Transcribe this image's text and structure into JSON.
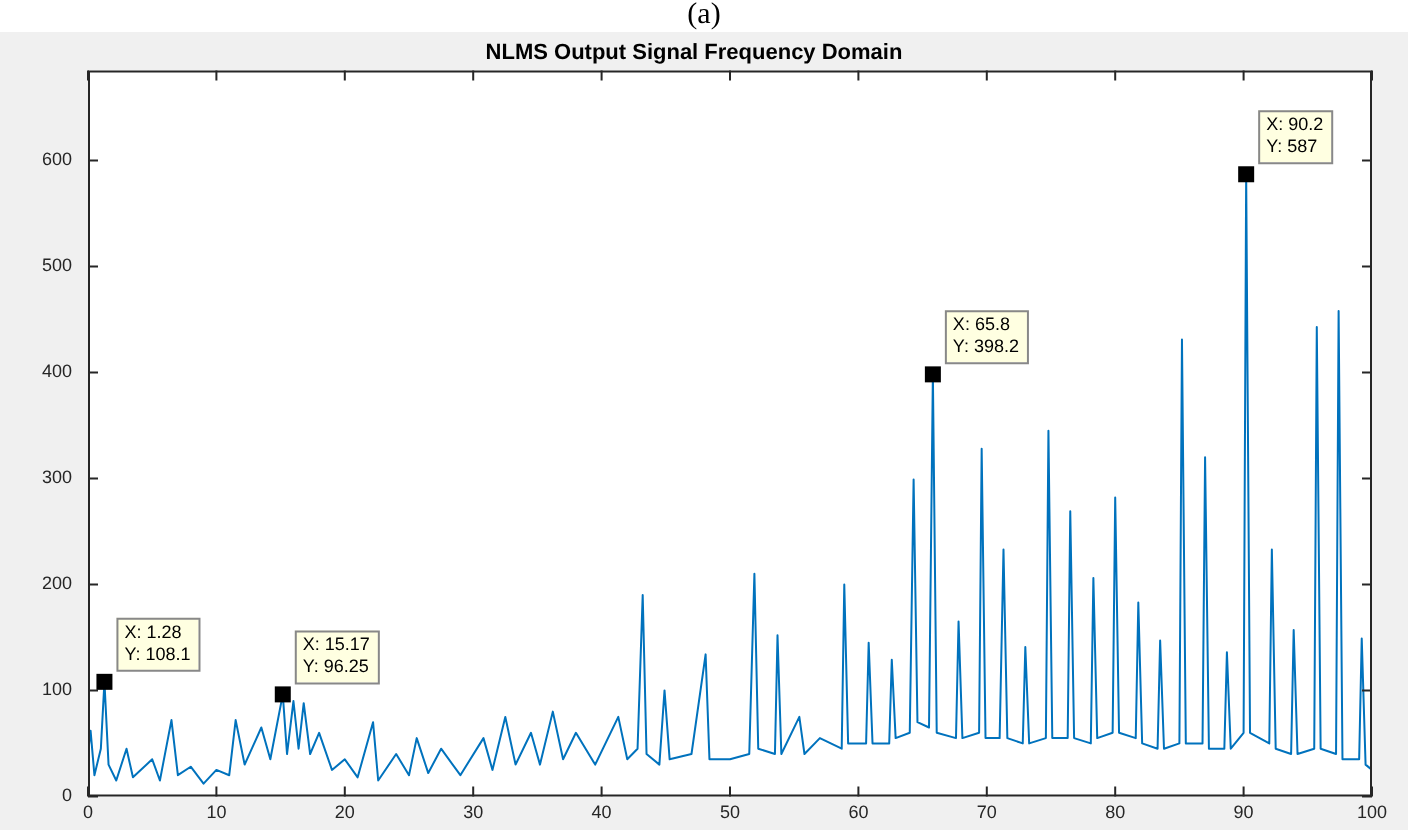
{
  "chart_data": {
    "type": "line",
    "title": "NLMS Output Signal Frequency Domain",
    "annotations": [
      "(a)",
      {
        "text": "X: 1.28\nY: 108.1",
        "x": 1.28,
        "y": 108.1
      },
      {
        "text": "X: 15.17\nY: 96.25",
        "x": 15.17,
        "y": 96.25
      },
      {
        "text": "X: 65.8\nY: 398.2",
        "x": 65.8,
        "y": 398.2
      },
      {
        "text": "X: 90.2\nY: 587",
        "x": 90.2,
        "y": 587
      }
    ],
    "x": [
      0,
      0.2,
      0.5,
      1.0,
      1.28,
      1.6,
      2.2,
      3,
      3.5,
      5,
      5.6,
      6.5,
      7,
      8,
      9,
      10,
      11,
      11.5,
      12.2,
      13.5,
      14.2,
      15.17,
      15.5,
      16,
      16.4,
      16.8,
      17.3,
      18,
      19,
      20,
      21,
      22.2,
      22.6,
      24,
      25,
      25.6,
      26.5,
      27.5,
      29,
      30.8,
      31.5,
      32.5,
      33.3,
      34.5,
      35.2,
      36.2,
      37,
      38,
      39.5,
      41.3,
      42,
      42.8,
      43.2,
      43.5,
      44.5,
      44.9,
      45.3,
      47,
      48.1,
      48.4,
      50,
      51.5,
      51.9,
      52.2,
      53.5,
      53.7,
      54,
      55.4,
      55.8,
      57,
      58.7,
      58.9,
      59.2,
      60.6,
      60.8,
      61.1,
      62.4,
      62.6,
      62.9,
      64.0,
      64.3,
      64.6,
      65.5,
      65.8,
      66.1,
      67.6,
      67.8,
      68.1,
      69.4,
      69.6,
      69.9,
      71.0,
      71.3,
      71.6,
      72.8,
      73.0,
      73.3,
      74.6,
      74.8,
      75.1,
      76.3,
      76.5,
      76.8,
      78.1,
      78.3,
      78.6,
      79.8,
      80.0,
      80.3,
      81.6,
      81.8,
      82.1,
      83.3,
      83.5,
      83.8,
      85.0,
      85.2,
      85.5,
      86.8,
      87.0,
      87.3,
      88.5,
      88.7,
      89.0,
      90.0,
      90.2,
      90.5,
      92.0,
      92.2,
      92.5,
      93.7,
      93.9,
      94.2,
      95.5,
      95.7,
      96.0,
      97.2,
      97.4,
      97.7,
      99.0,
      99.2,
      99.5,
      100
    ],
    "series": [
      {
        "color": "#0072bd",
        "values": [
          40,
          62,
          20,
          45,
          108.1,
          30,
          15,
          45,
          18,
          35,
          15,
          72,
          20,
          28,
          12,
          25,
          20,
          72,
          30,
          65,
          35,
          96.25,
          40,
          90,
          45,
          88,
          40,
          60,
          25,
          35,
          18,
          70,
          15,
          40,
          20,
          55,
          22,
          45,
          20,
          55,
          25,
          75,
          30,
          60,
          30,
          80,
          35,
          60,
          30,
          75,
          35,
          45,
          190,
          40,
          30,
          100,
          35,
          40,
          134,
          35,
          35,
          40,
          210,
          45,
          40,
          152,
          40,
          75,
          40,
          55,
          45,
          200,
          50,
          50,
          145,
          50,
          50,
          129,
          55,
          60,
          299,
          70,
          65,
          398.2,
          60,
          55,
          165,
          55,
          60,
          328,
          55,
          55,
          233,
          55,
          50,
          141,
          50,
          55,
          345,
          55,
          55,
          269,
          55,
          50,
          206,
          55,
          60,
          282,
          60,
          55,
          183,
          50,
          45,
          147,
          45,
          50,
          431,
          50,
          50,
          320,
          45,
          45,
          136,
          45,
          60,
          587,
          60,
          50,
          233,
          45,
          40,
          157,
          40,
          45,
          443,
          45,
          40,
          458,
          35,
          35,
          149,
          30,
          25
        ]
      }
    ],
    "xlim": [
      0,
      100
    ],
    "xticks": [
      0,
      10,
      20,
      30,
      40,
      50,
      60,
      70,
      80,
      90,
      100
    ],
    "ylim": [
      0,
      685
    ],
    "yticks": [
      0,
      100,
      200,
      300,
      400,
      500,
      600
    ],
    "grid": false,
    "legend": false,
    "marker": "none",
    "line_style": "solid"
  }
}
